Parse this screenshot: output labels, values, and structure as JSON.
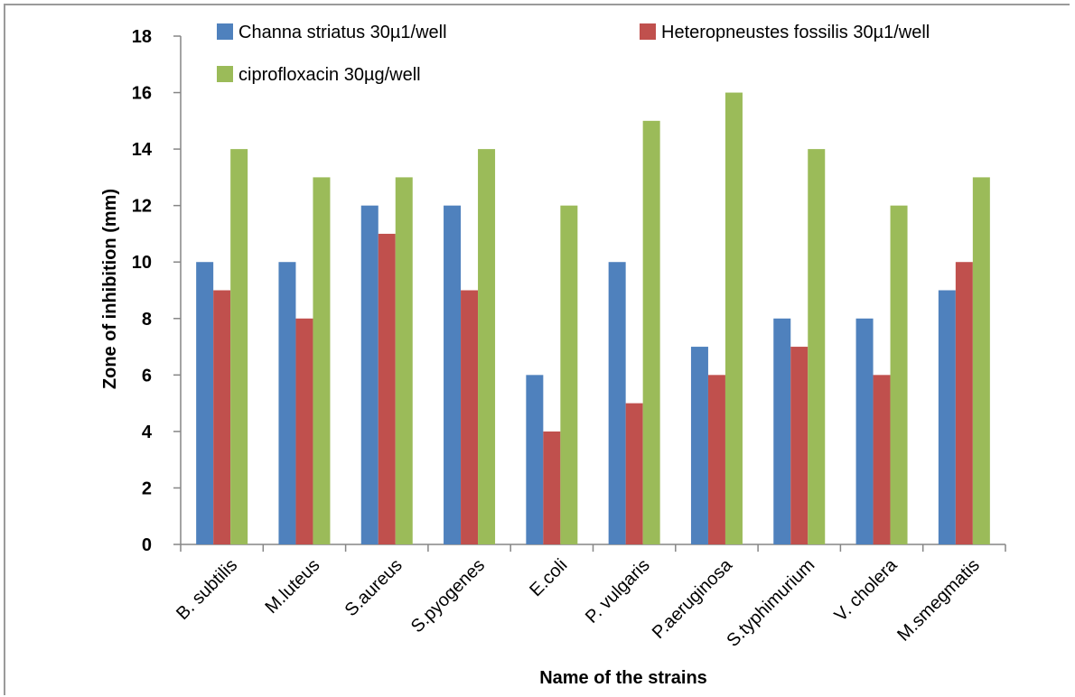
{
  "chart_data": {
    "type": "bar",
    "title": "",
    "xlabel": "Name  of the strains",
    "ylabel": "Zone of inhibition (mm)",
    "ylim": [
      0,
      18
    ],
    "yticks": [
      0,
      2,
      4,
      6,
      8,
      10,
      12,
      14,
      16,
      18
    ],
    "grid": false,
    "legend_position": "top",
    "categories": [
      "B. subtilis",
      "M.luteus",
      "S.aureus",
      "S.pyogenes",
      "E.coli",
      "P. vulgaris",
      "P.aeruginosa",
      "S.typhimurium",
      "V. cholera",
      "M.smegmatis"
    ],
    "series": [
      {
        "name": "Channa striatus 30µ1/well",
        "color": "#4f81bd",
        "values": [
          10,
          10,
          12,
          12,
          6,
          10,
          7,
          8,
          8,
          9
        ]
      },
      {
        "name": "Heteropneustes fossilis 30µ1/well",
        "color": "#c0504d",
        "values": [
          9,
          8,
          11,
          9,
          4,
          5,
          6,
          7,
          6,
          10
        ]
      },
      {
        "name": "ciprofloxacin 30µg/well",
        "color": "#9bbb59",
        "values": [
          14,
          13,
          13,
          14,
          12,
          15,
          16,
          14,
          12,
          13
        ]
      }
    ]
  }
}
